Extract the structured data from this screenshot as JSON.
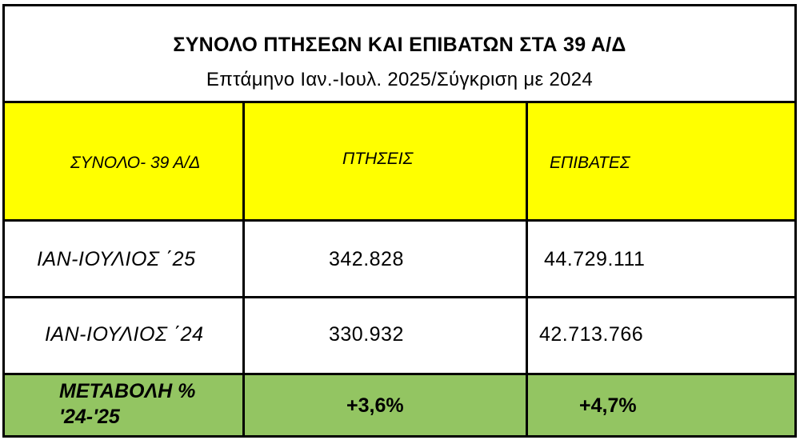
{
  "title": "ΣΥΝΟΛΟ ΠΤΗΣΕΩΝ ΚΑΙ ΕΠΙΒΑΤΩΝ ΣΤΑ 39 Α/Δ",
  "subtitle": "Επτάμηνο Ιαν.-Ιουλ. 2025/Σύγκριση με 2024",
  "columns": [
    "ΣΥΝΟΛΟ- 39 Α/Δ",
    "ΠΤΗΣΕΙΣ",
    "ΕΠΙΒΑΤΕΣ"
  ],
  "rows": [
    {
      "label": "ΙΑΝ-ΙΟΥΛΙΟΣ ΄25",
      "flights": "342.828",
      "passengers": "44.729.111"
    },
    {
      "label": "ΙΑΝ-ΙΟΥΛΙΟΣ ΄24",
      "flights": "330.932",
      "passengers": "42.713.766"
    }
  ],
  "change": {
    "label_line1": "ΜΕΤΑΒΟΛΗ %",
    "label_line2": "'24-'25",
    "flights": "+3,6%",
    "passengers": "+4,7%"
  },
  "colors": {
    "header_background": "#ffff00",
    "change_background": "#93c562",
    "border": "#000000"
  }
}
